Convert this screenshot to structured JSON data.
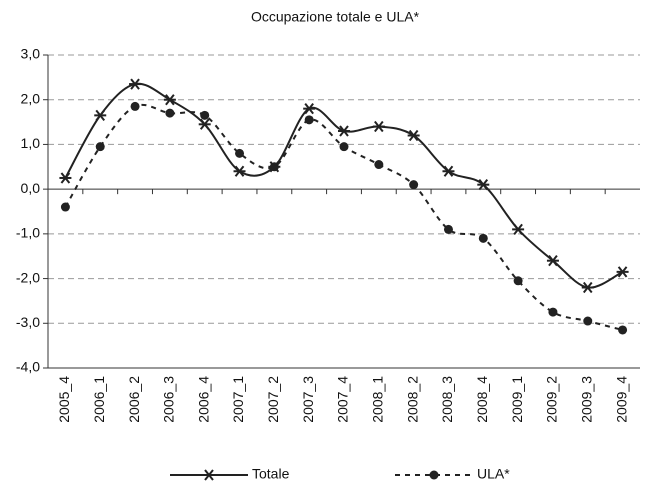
{
  "chart_data": {
    "type": "line",
    "title": "Occupazione totale e ULA*",
    "categories": [
      "2005_4",
      "2006_1",
      "2006_2",
      "2006_3",
      "2006_4",
      "2007_1",
      "2007_2",
      "2007_3",
      "2007_4",
      "2008_1",
      "2008_2",
      "2008_3",
      "2008_4",
      "2009_1",
      "2009_2",
      "2009_3",
      "2009_4"
    ],
    "series": [
      {
        "name": "Totale",
        "color": "#222222",
        "line_style": "solid",
        "marker": "star",
        "values": [
          0.25,
          1.65,
          2.35,
          2.0,
          1.45,
          0.4,
          0.5,
          1.8,
          1.3,
          1.4,
          1.2,
          0.4,
          0.1,
          -0.9,
          -1.6,
          -2.2,
          -1.85
        ]
      },
      {
        "name": "ULA*",
        "color": "#222222",
        "line_style": "dashed",
        "marker": "circle",
        "values": [
          -0.4,
          0.95,
          1.85,
          1.7,
          1.65,
          0.8,
          0.5,
          1.55,
          0.95,
          0.55,
          0.1,
          -0.9,
          -1.1,
          -2.05,
          -2.75,
          -2.95,
          -3.15
        ]
      }
    ],
    "ylim": [
      -4,
      3
    ],
    "yticks": [
      {
        "value": -4,
        "label": "-4,0"
      },
      {
        "value": -3,
        "label": "-3,0"
      },
      {
        "value": -2,
        "label": "-2,0"
      },
      {
        "value": -1,
        "label": "-1,0"
      },
      {
        "value": 0,
        "label": "0,0"
      },
      {
        "value": 1,
        "label": "1,0"
      },
      {
        "value": 2,
        "label": "2,0"
      },
      {
        "value": 3,
        "label": "3,0"
      }
    ],
    "grid": true,
    "smooth": true,
    "legend": "bottom"
  }
}
